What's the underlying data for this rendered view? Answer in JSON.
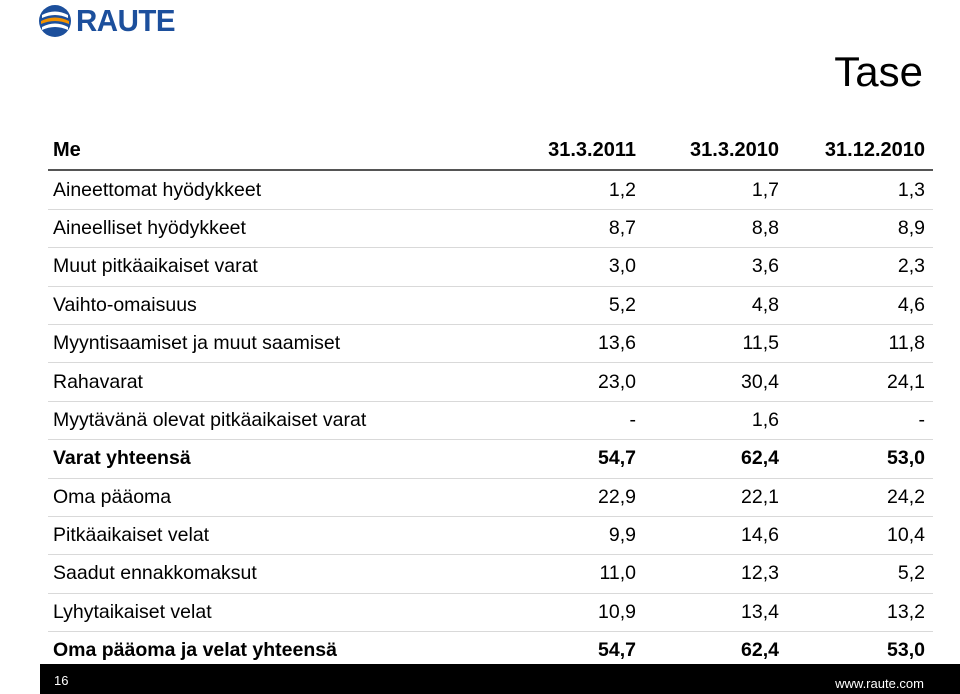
{
  "header": {
    "logo_text": "RAUTE",
    "title": "Tase"
  },
  "table": {
    "columns": [
      "Me",
      "31.3.2011",
      "31.3.2010",
      "31.12.2010"
    ],
    "rows": [
      {
        "label": "Aineettomat hyödykkeet",
        "values": [
          "1,2",
          "1,7",
          "1,3"
        ],
        "bold": false
      },
      {
        "label": "Aineelliset hyödykkeet",
        "values": [
          "8,7",
          "8,8",
          "8,9"
        ],
        "bold": false
      },
      {
        "label": "Muut pitkäaikaiset varat",
        "values": [
          "3,0",
          "3,6",
          "2,3"
        ],
        "bold": false
      },
      {
        "label": "Vaihto-omaisuus",
        "values": [
          "5,2",
          "4,8",
          "4,6"
        ],
        "bold": false
      },
      {
        "label": "Myyntisaamiset ja muut saamiset",
        "values": [
          "13,6",
          "11,5",
          "11,8"
        ],
        "bold": false
      },
      {
        "label": "Rahavarat",
        "values": [
          "23,0",
          "30,4",
          "24,1"
        ],
        "bold": false
      },
      {
        "label": "Myytävänä olevat pitkäaikaiset varat",
        "values": [
          "-",
          "1,6",
          "-"
        ],
        "bold": false
      },
      {
        "label": "Varat yhteensä",
        "values": [
          "54,7",
          "62,4",
          "53,0"
        ],
        "bold": true
      },
      {
        "label": "Oma pääoma",
        "values": [
          "22,9",
          "22,1",
          "24,2"
        ],
        "bold": false
      },
      {
        "label": "Pitkäaikaiset velat",
        "values": [
          "9,9",
          "14,6",
          "10,4"
        ],
        "bold": false
      },
      {
        "label": "Saadut ennakkomaksut",
        "values": [
          "11,0",
          "12,3",
          "5,2"
        ],
        "bold": false
      },
      {
        "label": "Lyhytaikaiset velat",
        "values": [
          "10,9",
          "13,4",
          "13,2"
        ],
        "bold": false
      },
      {
        "label": "Oma pääoma ja velat yhteensä",
        "values": [
          "54,7",
          "62,4",
          "53,0"
        ],
        "bold": true
      }
    ]
  },
  "footer": {
    "page_number": "16",
    "url": "www.raute.com"
  },
  "colors": {
    "brand_blue": "#1c4f9c",
    "brand_orange": "#f39200",
    "footer_bg": "#000000"
  }
}
